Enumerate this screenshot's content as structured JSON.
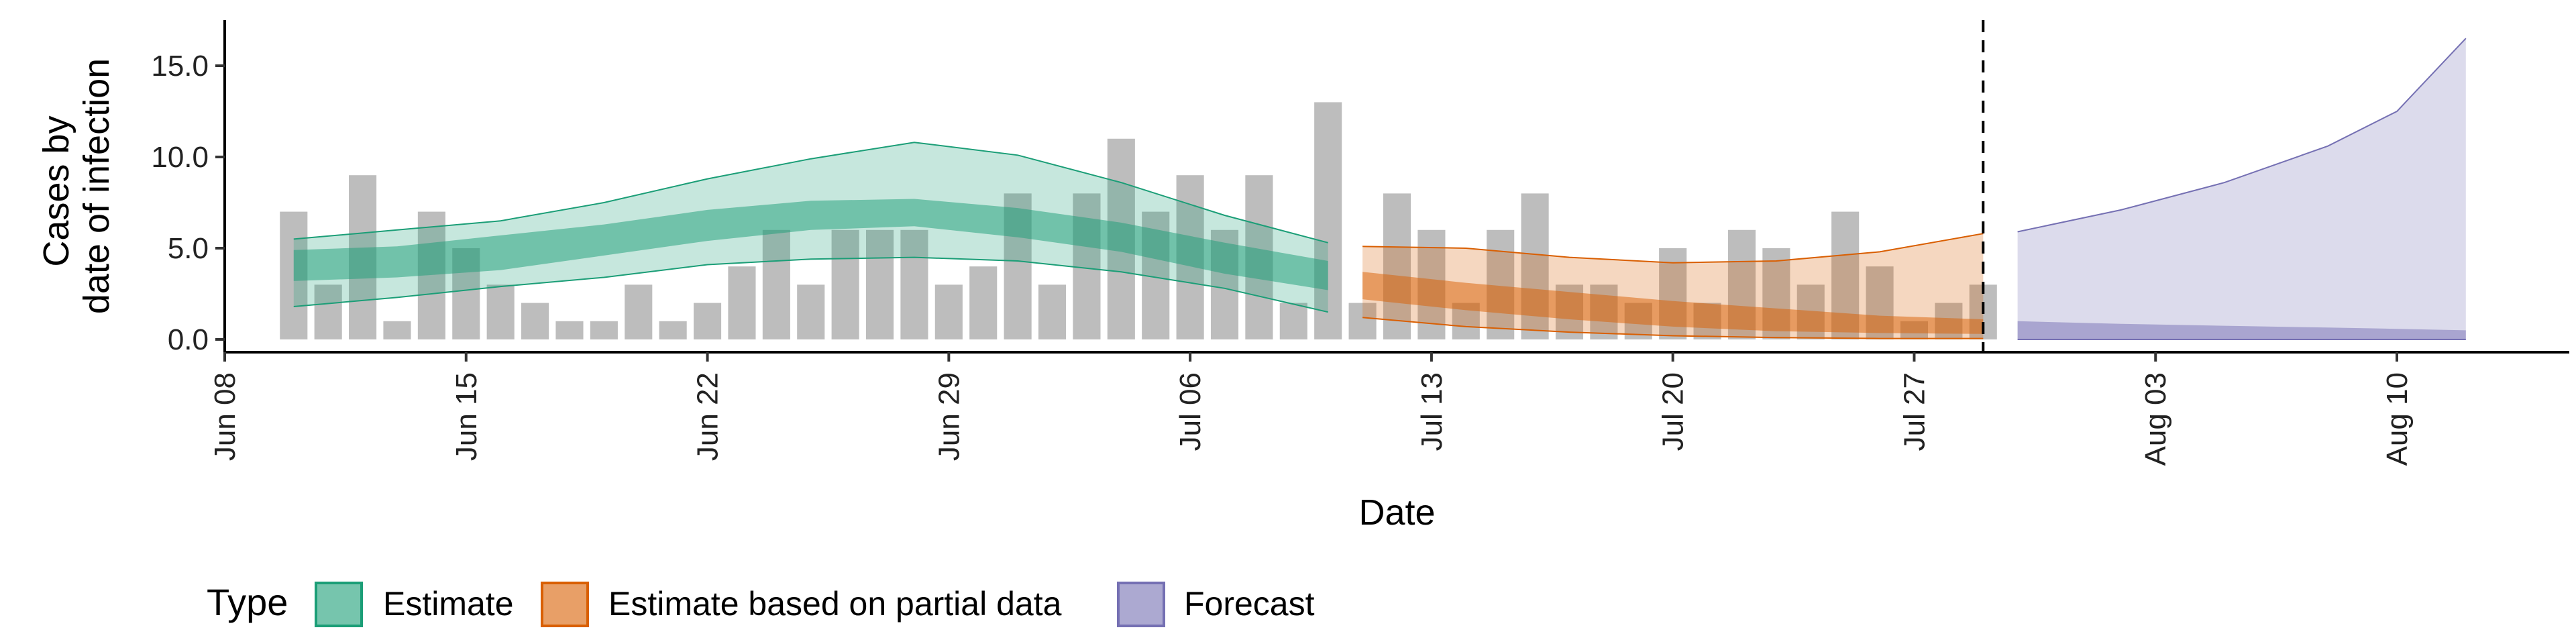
{
  "chart_data": {
    "type": "bar",
    "title": "",
    "xlabel": "Date",
    "ylabel_lines": [
      "Cases by",
      "date of infection"
    ],
    "xlim": [
      "2020-06-08",
      "2020-08-15"
    ],
    "ylim": [
      -0.7,
      17.5
    ],
    "x_ticks": [
      {
        "date": "2020-06-08",
        "label": "Jun 08"
      },
      {
        "date": "2020-06-15",
        "label": "Jun 15"
      },
      {
        "date": "2020-06-22",
        "label": "Jun 22"
      },
      {
        "date": "2020-06-29",
        "label": "Jun 29"
      },
      {
        "date": "2020-07-06",
        "label": "Jul 06"
      },
      {
        "date": "2020-07-13",
        "label": "Jul 13"
      },
      {
        "date": "2020-07-20",
        "label": "Jul 20"
      },
      {
        "date": "2020-07-27",
        "label": "Jul 27"
      },
      {
        "date": "2020-08-03",
        "label": "Aug 03"
      },
      {
        "date": "2020-08-10",
        "label": "Aug 10"
      }
    ],
    "y_ticks": [
      {
        "value": 0,
        "label": "0.0"
      },
      {
        "value": 5,
        "label": "5.0"
      },
      {
        "value": 10,
        "label": "10.0"
      },
      {
        "value": 15,
        "label": "15.0"
      }
    ],
    "forecast_start": "2020-07-29",
    "bars": {
      "start_date": "2020-06-10",
      "values": [
        7,
        3,
        9,
        1,
        7,
        5,
        3,
        2,
        1,
        1,
        3,
        1,
        2,
        4,
        6,
        3,
        6,
        6,
        6,
        3,
        4,
        8,
        3,
        8,
        11,
        7,
        9,
        6,
        9,
        2,
        13,
        2,
        8,
        6,
        2,
        6,
        8,
        3,
        3,
        2,
        5,
        2,
        6,
        5,
        3,
        7,
        4,
        1,
        2,
        3
      ]
    },
    "legend": {
      "title": "Type",
      "position": "bottom",
      "items": [
        {
          "label": "Estimate",
          "color": "#1b9e77"
        },
        {
          "label": "Estimate based on partial data",
          "color": "#d95f02"
        },
        {
          "label": "Forecast",
          "color": "#7570b3"
        }
      ]
    },
    "bands": [
      {
        "type": "Estimate",
        "color": "#1b9e77",
        "dates": [
          "2020-06-10",
          "2020-06-13",
          "2020-06-16",
          "2020-06-19",
          "2020-06-22",
          "2020-06-25",
          "2020-06-28",
          "2020-07-01",
          "2020-07-04",
          "2020-07-07",
          "2020-07-10"
        ],
        "outer_lower": [
          1.8,
          2.3,
          2.9,
          3.4,
          4.1,
          4.4,
          4.5,
          4.3,
          3.7,
          2.8,
          1.5
        ],
        "outer_upper": [
          5.5,
          6.0,
          6.5,
          7.5,
          8.8,
          9.9,
          10.8,
          10.1,
          8.6,
          6.8,
          5.3
        ],
        "inner_lower": [
          3.2,
          3.4,
          3.8,
          4.6,
          5.4,
          6.0,
          6.2,
          5.6,
          4.8,
          3.6,
          2.7
        ],
        "inner_upper": [
          4.9,
          5.1,
          5.7,
          6.3,
          7.1,
          7.6,
          7.7,
          7.2,
          6.4,
          5.3,
          4.3
        ]
      },
      {
        "type": "Estimate based on partial data",
        "color": "#d95f02",
        "dates": [
          "2020-07-11",
          "2020-07-14",
          "2020-07-17",
          "2020-07-20",
          "2020-07-23",
          "2020-07-26",
          "2020-07-29"
        ],
        "outer_lower": [
          1.2,
          0.7,
          0.4,
          0.2,
          0.1,
          0.05,
          0.05
        ],
        "outer_upper": [
          5.1,
          5.0,
          4.5,
          4.2,
          4.3,
          4.8,
          5.8
        ],
        "inner_lower": [
          2.2,
          1.6,
          1.1,
          0.7,
          0.45,
          0.35,
          0.3
        ],
        "inner_upper": [
          3.7,
          3.1,
          2.6,
          2.1,
          1.7,
          1.3,
          1.1
        ]
      },
      {
        "type": "Forecast",
        "color": "#7570b3",
        "dates": [
          "2020-07-30",
          "2020-08-02",
          "2020-08-05",
          "2020-08-08",
          "2020-08-10",
          "2020-08-12"
        ],
        "outer_lower": [
          0,
          0,
          0,
          0,
          0,
          0
        ],
        "outer_upper": [
          5.9,
          7.1,
          8.6,
          10.6,
          12.5,
          16.5
        ],
        "inner_lower": [
          0,
          0,
          0,
          0,
          0,
          0
        ],
        "inner_upper": [
          1.0,
          0.85,
          0.75,
          0.65,
          0.58,
          0.5
        ]
      }
    ]
  }
}
